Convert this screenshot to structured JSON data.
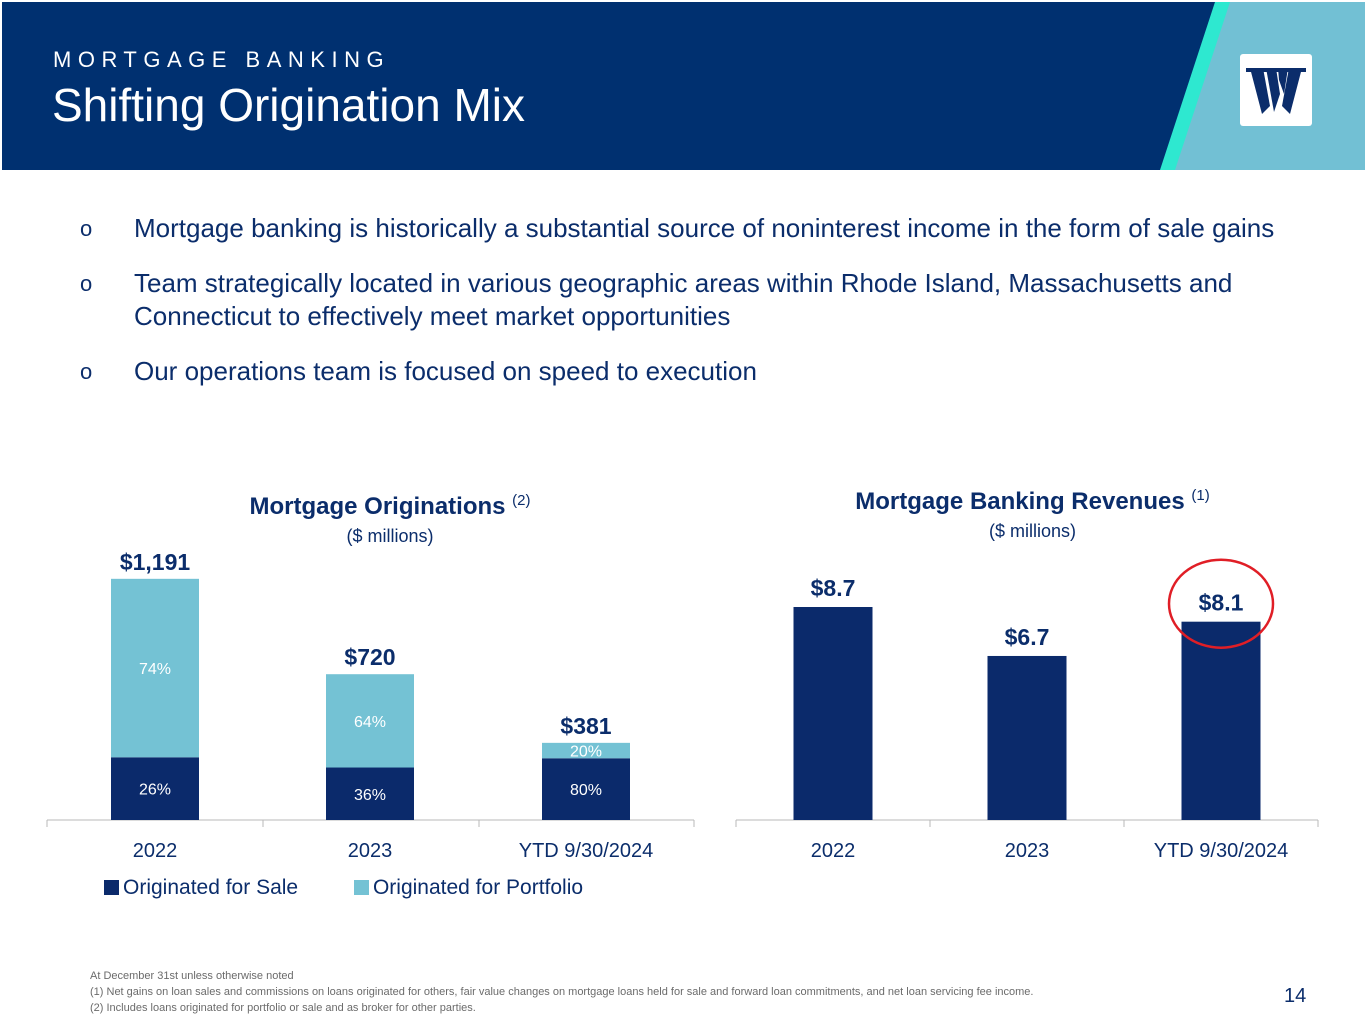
{
  "header": {
    "kicker": "MORTGAGE BANKING",
    "title": "Shifting Origination Mix",
    "logo_icon": "washington-trust-logo-icon"
  },
  "bullets": [
    {
      "mark": "o",
      "text": "Mortgage banking is historically a substantial source of noninterest income in the form of sale gains"
    },
    {
      "mark": "o",
      "text": "Team strategically located in various geographic areas within Rhode Island, Massachusetts and Connecticut to effectively meet market opportunities"
    },
    {
      "mark": "o",
      "text": "Our operations team is focused on speed to execution"
    }
  ],
  "chart_left": {
    "title": "Mortgage Originations",
    "note": "(2)",
    "subtitle": "($ millions)"
  },
  "chart_right": {
    "title": "Mortgage Banking Revenues",
    "note": "(1)",
    "subtitle": "($ millions)"
  },
  "legend": {
    "sale": "Originated for Sale",
    "portfolio": "Originated for Portfolio"
  },
  "chart_data": [
    {
      "type": "bar",
      "stacked": true,
      "title": "Mortgage Originations",
      "subtitle": "($ millions)",
      "categories": [
        "2022",
        "2023",
        "YTD 9/30/2024"
      ],
      "totals": [
        1191,
        720,
        381
      ],
      "total_labels": [
        "$1,191",
        "$720",
        "$381"
      ],
      "series": [
        {
          "name": "Originated for Sale",
          "share_pct": [
            26,
            36,
            80
          ],
          "labels": [
            "26%",
            "36%",
            "80%"
          ],
          "color": "#0b2a6b"
        },
        {
          "name": "Originated for Portfolio",
          "share_pct": [
            74,
            64,
            20
          ],
          "labels": [
            "74%",
            "64%",
            "20%"
          ],
          "color": "#74c2d4"
        }
      ],
      "legend": "bottom-left",
      "grid": false
    },
    {
      "type": "bar",
      "title": "Mortgage Banking Revenues",
      "subtitle": "($ millions)",
      "categories": [
        "2022",
        "2023",
        "YTD 9/30/2024"
      ],
      "values": [
        8.7,
        6.7,
        8.1
      ],
      "labels": [
        "$8.7",
        "$6.7",
        "$8.1"
      ],
      "color": "#0b2a6b",
      "highlight": {
        "category": "YTD 9/30/2024",
        "shape": "circle",
        "color": "#e01e26"
      },
      "grid": false
    }
  ],
  "footnotes": [
    "At December 31st unless otherwise noted",
    "(1) Net gains on loan sales and commissions on loans originated for others, fair value changes on mortgage loans held for sale and forward loan commitments, and net loan servicing fee income.",
    "(2) Includes loans originated for portfolio or sale and as broker for other parties."
  ],
  "page_number": "14",
  "colors": {
    "navy": "#003070",
    "dark_bar": "#0b2a6b",
    "light_bar": "#74c2d4",
    "teal_stripe": "#2ee8d0",
    "accent_blue": "#72c0d4",
    "highlight_red": "#e01e26"
  }
}
